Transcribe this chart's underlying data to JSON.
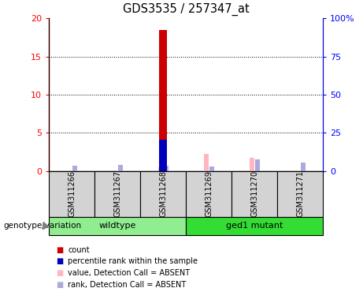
{
  "title": "GDS3535 / 257347_at",
  "samples": [
    "GSM311266",
    "GSM311267",
    "GSM311268",
    "GSM311269",
    "GSM311270",
    "GSM311271"
  ],
  "groups": [
    {
      "label": "wildtype",
      "color": "#90EE90",
      "indices": [
        0,
        1,
        2
      ]
    },
    {
      "label": "ged1 mutant",
      "color": "#33DD33",
      "indices": [
        3,
        4,
        5
      ]
    }
  ],
  "count_values": [
    0.0,
    0.0,
    18.5,
    0.0,
    0.0,
    0.0
  ],
  "percentile_rank_values": [
    0.0,
    0.0,
    4.1,
    0.0,
    0.0,
    0.0
  ],
  "absent_value_values": [
    0.0,
    0.0,
    0.5,
    2.3,
    1.7,
    0.0
  ],
  "absent_rank_values": [
    0.7,
    0.8,
    0.7,
    0.6,
    1.5,
    1.1
  ],
  "left_ylim": [
    0,
    20
  ],
  "right_ylim": [
    0,
    100
  ],
  "left_yticks": [
    0,
    5,
    10,
    15,
    20
  ],
  "right_yticks": [
    0,
    25,
    50,
    75,
    100
  ],
  "left_yticklabels": [
    "0",
    "5",
    "10",
    "15",
    "20"
  ],
  "right_yticklabels": [
    "0",
    "25",
    "50",
    "75",
    "100%"
  ],
  "bar_color_count": "#CC0000",
  "bar_color_percentile": "#0000BB",
  "bar_color_absent_value": "#FFB6C1",
  "bar_color_absent_rank": "#AAAADD",
  "sample_box_color": "#D3D3D3",
  "legend_items": [
    {
      "color": "#CC0000",
      "label": "count"
    },
    {
      "color": "#0000BB",
      "label": "percentile rank within the sample"
    },
    {
      "color": "#FFB6C1",
      "label": "value, Detection Call = ABSENT"
    },
    {
      "color": "#AAAADD",
      "label": "rank, Detection Call = ABSENT"
    }
  ]
}
